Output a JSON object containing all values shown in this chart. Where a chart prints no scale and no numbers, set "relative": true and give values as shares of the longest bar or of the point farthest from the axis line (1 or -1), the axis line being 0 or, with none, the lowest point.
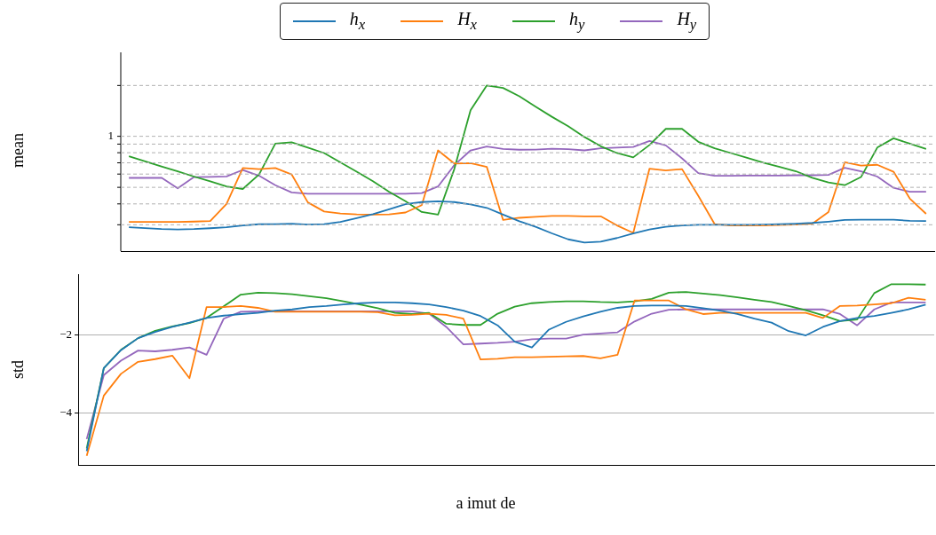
{
  "chart_data": [
    {
      "type": "line",
      "relative": true,
      "ylabel": "mean",
      "legend": "top",
      "tick_labels": false,
      "categories": [
        null,
        null,
        null,
        null,
        null,
        null,
        null,
        null,
        null,
        null,
        null,
        null,
        null,
        null,
        null,
        null,
        null,
        null,
        null,
        null,
        null,
        null,
        null,
        null,
        null,
        null,
        null,
        null,
        null,
        null,
        null,
        null,
        null,
        null,
        null,
        null,
        null,
        null,
        null,
        null,
        null,
        null,
        null,
        null,
        null,
        null,
        null,
        null,
        null,
        null
      ],
      "ref_lines": [
        {
          "axis": "y",
          "value": 1.0,
          "label": null,
          "color": "#b0b0b0",
          "line_style": "dashed"
        },
        {
          "axis": "y",
          "value": 0.693,
          "label": "1",
          "color": "#b0b0b0",
          "line_style": "dashed"
        },
        {
          "axis": "y",
          "value": 0.646,
          "label": null,
          "color": "#b0b0b0",
          "line_style": "dashed"
        },
        {
          "axis": "y",
          "value": 0.594,
          "label": null,
          "color": "#b0b0b0",
          "line_style": "dashed"
        },
        {
          "axis": "y",
          "value": 0.533,
          "label": null,
          "color": "#b0b0b0",
          "line_style": "dashed"
        },
        {
          "axis": "y",
          "value": 0.465,
          "label": null,
          "color": "#b0b0b0",
          "line_style": "dashed"
        },
        {
          "axis": "y",
          "value": 0.385,
          "label": null,
          "color": "#b0b0b0",
          "line_style": "dashed"
        },
        {
          "axis": "y",
          "value": 0.285,
          "label": null,
          "color": "#b0b0b0",
          "line_style": "dashed"
        },
        {
          "axis": "y",
          "value": 0.159,
          "label": null,
          "color": "#b0b0b0",
          "line_style": "dashed"
        }
      ],
      "series": [
        {
          "name": "h$_{x}$",
          "color": "#1f77b4",
          "values": [
            0.144,
            0.139,
            0.133,
            0.131,
            0.133,
            0.138,
            0.144,
            0.155,
            0.162,
            0.163,
            0.165,
            0.16,
            0.163,
            0.176,
            0.199,
            0.223,
            0.252,
            0.283,
            0.296,
            0.301,
            0.296,
            0.282,
            0.261,
            0.22,
            0.18,
            0.147,
            0.107,
            0.071,
            0.052,
            0.057,
            0.079,
            0.107,
            0.131,
            0.147,
            0.155,
            0.159,
            0.159,
            0.159,
            0.159,
            0.16,
            0.162,
            0.165,
            0.17,
            0.178,
            0.188,
            0.189,
            0.189,
            0.189,
            0.183,
            0.181
          ]
        },
        {
          "name": "H$_{x}$",
          "color": "#ff7f0e",
          "values": [
            0.176,
            0.176,
            0.176,
            0.176,
            0.178,
            0.181,
            0.285,
            0.502,
            0.495,
            0.502,
            0.463,
            0.294,
            0.239,
            0.227,
            0.222,
            0.22,
            0.222,
            0.233,
            0.277,
            0.608,
            0.529,
            0.531,
            0.508,
            0.188,
            0.201,
            0.207,
            0.212,
            0.212,
            0.21,
            0.21,
            0.155,
            0.11,
            0.498,
            0.487,
            0.495,
            0.333,
            0.163,
            0.155,
            0.155,
            0.155,
            0.157,
            0.16,
            0.165,
            0.236,
            0.536,
            0.516,
            0.521,
            0.479,
            0.317,
            0.225
          ]
        },
        {
          "name": "h$_{y}$",
          "color": "#2ca02c",
          "values": [
            0.573,
            0.542,
            0.511,
            0.481,
            0.45,
            0.421,
            0.39,
            0.375,
            0.463,
            0.649,
            0.657,
            0.625,
            0.592,
            0.536,
            0.479,
            0.422,
            0.358,
            0.301,
            0.236,
            0.22,
            0.495,
            0.851,
            1.0,
            0.985,
            0.935,
            0.872,
            0.811,
            0.754,
            0.689,
            0.633,
            0.592,
            0.566,
            0.641,
            0.738,
            0.738,
            0.66,
            0.621,
            0.592,
            0.563,
            0.534,
            0.508,
            0.482,
            0.443,
            0.414,
            0.398,
            0.447,
            0.625,
            0.681,
            0.649,
            0.617
          ]
        },
        {
          "name": "H$_{y}$",
          "color": "#9467bd",
          "values": [
            0.442,
            0.442,
            0.443,
            0.379,
            0.447,
            0.448,
            0.451,
            0.49,
            0.455,
            0.398,
            0.354,
            0.346,
            0.346,
            0.346,
            0.346,
            0.346,
            0.346,
            0.346,
            0.35,
            0.39,
            0.519,
            0.608,
            0.631,
            0.617,
            0.612,
            0.613,
            0.618,
            0.615,
            0.608,
            0.621,
            0.625,
            0.629,
            0.665,
            0.638,
            0.56,
            0.471,
            0.455,
            0.455,
            0.456,
            0.456,
            0.456,
            0.458,
            0.458,
            0.46,
            0.503,
            0.482,
            0.45,
            0.382,
            0.358,
            0.358
          ]
        }
      ]
    },
    {
      "type": "line",
      "ylabel": "std",
      "xlabel": "a imut  de",
      "grid": "y",
      "tick_labels": "y",
      "categories": [
        null,
        null,
        null,
        null,
        null,
        null,
        null,
        null,
        null,
        null,
        null,
        null,
        null,
        null,
        null,
        null,
        null,
        null,
        null,
        null,
        null,
        null,
        null,
        null,
        null,
        null,
        null,
        null,
        null,
        null,
        null,
        null,
        null,
        null,
        null,
        null,
        null,
        null,
        null,
        null,
        null,
        null,
        null,
        null,
        null,
        null,
        null,
        null,
        null,
        null
      ],
      "ylim": [
        -5.35,
        -0.45
      ],
      "yticks": [
        {
          "value": -4,
          "label": "−4"
        },
        {
          "value": -2,
          "label": "−2"
        }
      ],
      "series": [
        {
          "color": "#1f77b4",
          "values": [
            -4.99,
            -2.85,
            -2.39,
            -2.08,
            -1.92,
            -1.79,
            -1.68,
            -1.56,
            -1.5,
            -1.46,
            -1.43,
            -1.37,
            -1.34,
            -1.28,
            -1.25,
            -1.21,
            -1.18,
            -1.16,
            -1.16,
            -1.18,
            -1.21,
            -1.28,
            -1.37,
            -1.51,
            -1.75,
            -2.17,
            -2.32,
            -1.86,
            -1.66,
            -1.52,
            -1.4,
            -1.3,
            -1.25,
            -1.24,
            -1.24,
            -1.25,
            -1.31,
            -1.37,
            -1.46,
            -1.58,
            -1.68,
            -1.9,
            -2.01,
            -1.79,
            -1.64,
            -1.56,
            -1.51,
            -1.43,
            -1.34,
            -1.22
          ]
        },
        {
          "color": "#ff7f0e",
          "values": [
            -5.11,
            -3.56,
            -3.0,
            -2.69,
            -2.62,
            -2.53,
            -3.11,
            -1.28,
            -1.28,
            -1.25,
            -1.3,
            -1.4,
            -1.4,
            -1.4,
            -1.4,
            -1.4,
            -1.4,
            -1.41,
            -1.49,
            -1.48,
            -1.45,
            -1.48,
            -1.58,
            -2.63,
            -2.61,
            -2.57,
            -2.57,
            -2.56,
            -2.55,
            -2.54,
            -2.6,
            -2.51,
            -1.11,
            -1.11,
            -1.11,
            -1.34,
            -1.46,
            -1.43,
            -1.43,
            -1.43,
            -1.43,
            -1.43,
            -1.43,
            -1.56,
            -1.25,
            -1.24,
            -1.21,
            -1.18,
            -1.04,
            -1.09
          ]
        },
        {
          "color": "#2ca02c",
          "values": [
            -4.92,
            -2.85,
            -2.38,
            -2.08,
            -1.89,
            -1.78,
            -1.69,
            -1.56,
            -1.26,
            -0.96,
            -0.91,
            -0.92,
            -0.95,
            -1.0,
            -1.05,
            -1.13,
            -1.22,
            -1.31,
            -1.43,
            -1.46,
            -1.43,
            -1.71,
            -1.74,
            -1.74,
            -1.45,
            -1.27,
            -1.18,
            -1.15,
            -1.13,
            -1.13,
            -1.15,
            -1.16,
            -1.13,
            -1.07,
            -0.91,
            -0.89,
            -0.93,
            -0.97,
            -1.03,
            -1.09,
            -1.15,
            -1.25,
            -1.36,
            -1.49,
            -1.64,
            -1.6,
            -0.92,
            -0.69,
            -0.69,
            -0.7
          ]
        },
        {
          "color": "#9467bd",
          "values": [
            -4.68,
            -3.03,
            -2.66,
            -2.4,
            -2.42,
            -2.38,
            -2.32,
            -2.51,
            -1.58,
            -1.4,
            -1.39,
            -1.39,
            -1.39,
            -1.39,
            -1.39,
            -1.39,
            -1.39,
            -1.39,
            -1.39,
            -1.39,
            -1.45,
            -1.79,
            -2.24,
            -2.22,
            -2.2,
            -2.17,
            -2.11,
            -2.09,
            -2.09,
            -1.99,
            -1.96,
            -1.93,
            -1.65,
            -1.45,
            -1.35,
            -1.34,
            -1.34,
            -1.34,
            -1.34,
            -1.34,
            -1.34,
            -1.34,
            -1.34,
            -1.34,
            -1.46,
            -1.75,
            -1.34,
            -1.16,
            -1.16,
            -1.16
          ]
        }
      ]
    }
  ]
}
